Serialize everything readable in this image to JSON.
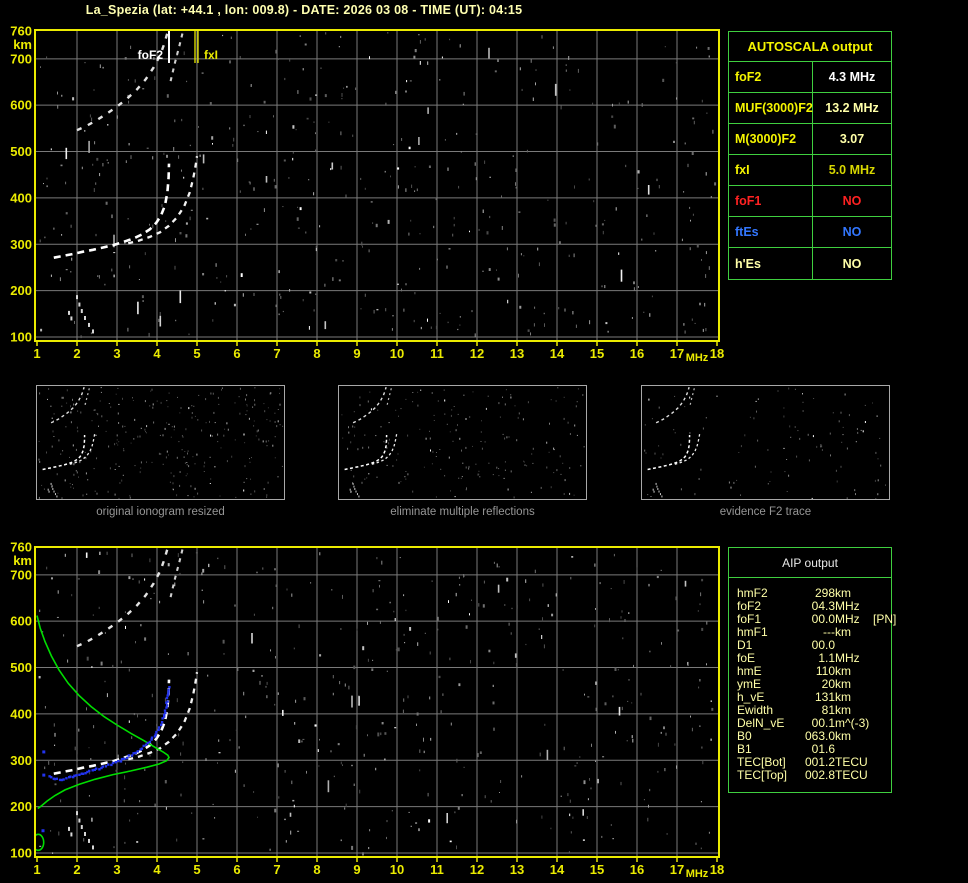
{
  "title": "La_Spezia (lat: +44.1 , lon: 009.8) - DATE: 2026 03 08 - TIME (UT): 04:15",
  "colors": {
    "background": "#000000",
    "axis_yellow": "#ebeb00",
    "title_pale_yellow": "#ffffb0",
    "grid_gray": "#7a7a7a",
    "table_border_green": "#3fcf3f",
    "pale_yellow_text": "#ffffa8",
    "red": "#ff2222",
    "blue": "#3377ff",
    "profile_green": "#00dd00",
    "restored_trace_blue": "#2233ee",
    "trace_white": "#ffffff",
    "caption_gray": "#969696",
    "thumb_border_gray": "#a8a8a8"
  },
  "axes": {
    "x_ticks": [
      1,
      2,
      3,
      4,
      5,
      6,
      7,
      8,
      9,
      10,
      11,
      12,
      13,
      14,
      15,
      16,
      17,
      18
    ],
    "x_unit": "MHz",
    "y_ticks": [
      760,
      700,
      600,
      500,
      400,
      300,
      200,
      100
    ],
    "y_unit": "km"
  },
  "autoscala": {
    "header": "AUTOSCALA output",
    "rows": [
      {
        "label": "foF2",
        "value": "4.3 MHz",
        "label_color": "#f5f500",
        "value_color": "#ffffff"
      },
      {
        "label": "MUF(3000)F2",
        "value": "13.2 MHz",
        "label_color": "#f5f500",
        "value_color": "#ffffa8"
      },
      {
        "label": "M(3000)F2",
        "value": "3.07",
        "label_color": "#f5f500",
        "value_color": "#ffffa8"
      },
      {
        "label": "fxI",
        "value": "5.0 MHz",
        "label_color": "#f5f500",
        "value_color": "#d8d800"
      },
      {
        "label": "foF1",
        "value": "NO",
        "label_color": "#ff2222",
        "value_color": "#ff2222"
      },
      {
        "label": "ftEs",
        "value": "NO",
        "label_color": "#3377ff",
        "value_color": "#3377ff"
      },
      {
        "label": "h'Es",
        "value": "NO",
        "label_color": "#ffffa8",
        "value_color": "#ffffa8"
      }
    ]
  },
  "thumbnails": [
    {
      "caption": "original ionogram resized"
    },
    {
      "caption": "eliminate multiple reflections"
    },
    {
      "caption": "evidence F2 trace"
    }
  ],
  "aip": {
    "header": "AIP output",
    "rows": [
      {
        "label": "hmF2",
        "value": "298",
        "unit": "km",
        "note": ""
      },
      {
        "label": "foF2",
        "value": "04.3",
        "unit": "MHz",
        "note": ""
      },
      {
        "label": "foF1",
        "value": "00.0",
        "unit": "MHz",
        "note": "[PN]"
      },
      {
        "label": "hmF1",
        "value": "---",
        "unit": "km",
        "note": ""
      },
      {
        "label": "D1",
        "value": "00.0",
        "unit": "",
        "note": ""
      },
      {
        "label": "foE",
        "value": "1.1",
        "unit": "MHz",
        "note": ""
      },
      {
        "label": "hmE",
        "value": "110",
        "unit": "km",
        "note": ""
      },
      {
        "label": "ymE",
        "value": "20",
        "unit": "km",
        "note": ""
      },
      {
        "label": "h_vE",
        "value": "131",
        "unit": "km",
        "note": ""
      },
      {
        "label": "Ewidth",
        "value": "81",
        "unit": "km",
        "note": ""
      },
      {
        "label": "DelN_vE",
        "value": "00.1",
        "unit": "m^(-3)",
        "note": ""
      },
      {
        "label": "B0",
        "value": "063.0",
        "unit": "km",
        "note": ""
      },
      {
        "label": "B1",
        "value": "01.6",
        "unit": "",
        "note": ""
      },
      {
        "label": "TEC[Bot]",
        "value": "001.2",
        "unit": "TECU",
        "note": ""
      },
      {
        "label": "TEC[Top]",
        "value": "002.8",
        "unit": "TECU",
        "note": ""
      }
    ]
  },
  "chart_data": [
    {
      "type": "scatter",
      "title": "ionogram echo traces (top plot)",
      "xlabel": "MHz",
      "ylabel": "km",
      "xlim": [
        1,
        18
      ],
      "ylim": [
        100,
        760
      ],
      "grid": true,
      "markers": [
        {
          "name": "foF2",
          "label": "foF2",
          "x_mhz": 4.3,
          "color": "#ffffff"
        },
        {
          "name": "fxI",
          "label": "fxI",
          "x_mhz": 5.0,
          "color": "#ebeb00"
        }
      ],
      "series": [
        {
          "name": "F2 O-mode trace",
          "points": [
            [
              1.42,
              271
            ],
            [
              1.65,
              275
            ],
            [
              1.9,
              279
            ],
            [
              2.15,
              284
            ],
            [
              2.4,
              288
            ],
            [
              2.65,
              293
            ],
            [
              2.9,
              298
            ],
            [
              3.15,
              305
            ],
            [
              3.4,
              312
            ],
            [
              3.62,
              321
            ],
            [
              3.82,
              332
            ],
            [
              3.98,
              346
            ],
            [
              4.1,
              362
            ],
            [
              4.2,
              384
            ],
            [
              4.26,
              412
            ],
            [
              4.29,
              444
            ],
            [
              4.3,
              474
            ]
          ]
        },
        {
          "name": "F2 X-mode trace",
          "points": [
            [
              3.28,
              302
            ],
            [
              3.55,
              308
            ],
            [
              3.82,
              316
            ],
            [
              4.08,
              326
            ],
            [
              4.3,
              340
            ],
            [
              4.5,
              358
            ],
            [
              4.68,
              382
            ],
            [
              4.82,
              412
            ],
            [
              4.91,
              444
            ],
            [
              4.97,
              472
            ],
            [
              5.0,
              490
            ]
          ]
        },
        {
          "name": "second reflection O",
          "points": [
            [
              2.0,
              546
            ],
            [
              2.25,
              556
            ],
            [
              2.5,
              568
            ],
            [
              2.75,
              582
            ],
            [
              3.0,
              597
            ],
            [
              3.25,
              614
            ],
            [
              3.5,
              634
            ],
            [
              3.72,
              656
            ],
            [
              3.92,
              682
            ],
            [
              4.08,
              708
            ],
            [
              4.18,
              732
            ],
            [
              4.26,
              756
            ]
          ]
        },
        {
          "name": "second reflection X",
          "points": [
            [
              4.34,
              652
            ],
            [
              4.45,
              692
            ],
            [
              4.56,
              728
            ],
            [
              4.64,
              756
            ]
          ]
        },
        {
          "name": "E-region echoes",
          "points": [
            [
              1.8,
              152
            ],
            [
              1.86,
              140
            ],
            [
              2.0,
              186
            ],
            [
              2.06,
              170
            ],
            [
              2.12,
              156
            ],
            [
              2.2,
              141
            ],
            [
              2.3,
              126
            ],
            [
              2.4,
              112
            ]
          ]
        }
      ]
    },
    {
      "type": "scatter",
      "title": "ionogram with AIP inversion profile (bottom plot)",
      "xlabel": "MHz",
      "ylabel": "km",
      "xlim": [
        1,
        18
      ],
      "ylim": [
        100,
        760
      ],
      "grid": true,
      "series": [
        {
          "name": "F2 O-mode trace",
          "points": [
            [
              1.42,
              271
            ],
            [
              1.65,
              275
            ],
            [
              1.9,
              279
            ],
            [
              2.15,
              284
            ],
            [
              2.4,
              288
            ],
            [
              2.65,
              293
            ],
            [
              2.9,
              298
            ],
            [
              3.15,
              305
            ],
            [
              3.4,
              312
            ],
            [
              3.62,
              321
            ],
            [
              3.82,
              332
            ],
            [
              3.98,
              346
            ],
            [
              4.1,
              362
            ],
            [
              4.2,
              384
            ],
            [
              4.26,
              412
            ],
            [
              4.29,
              444
            ],
            [
              4.3,
              474
            ]
          ]
        },
        {
          "name": "F2 X-mode trace",
          "points": [
            [
              3.28,
              302
            ],
            [
              3.55,
              308
            ],
            [
              3.82,
              316
            ],
            [
              4.08,
              326
            ],
            [
              4.3,
              340
            ],
            [
              4.5,
              358
            ],
            [
              4.68,
              382
            ],
            [
              4.82,
              412
            ],
            [
              4.91,
              444
            ],
            [
              4.97,
              472
            ],
            [
              5.0,
              490
            ]
          ]
        },
        {
          "name": "second reflection O",
          "points": [
            [
              2.0,
              546
            ],
            [
              2.25,
              556
            ],
            [
              2.5,
              568
            ],
            [
              2.75,
              582
            ],
            [
              3.0,
              597
            ],
            [
              3.25,
              614
            ],
            [
              3.5,
              634
            ],
            [
              3.72,
              656
            ],
            [
              3.92,
              682
            ],
            [
              4.08,
              708
            ],
            [
              4.18,
              732
            ],
            [
              4.26,
              756
            ]
          ]
        },
        {
          "name": "second reflection X",
          "points": [
            [
              4.34,
              652
            ],
            [
              4.45,
              692
            ],
            [
              4.56,
              728
            ],
            [
              4.64,
              756
            ]
          ]
        },
        {
          "name": "E-region echoes",
          "points": [
            [
              1.8,
              152
            ],
            [
              1.86,
              140
            ],
            [
              2.0,
              186
            ],
            [
              2.06,
              170
            ],
            [
              2.12,
              156
            ],
            [
              2.2,
              141
            ],
            [
              2.3,
              126
            ],
            [
              2.4,
              112
            ]
          ]
        },
        {
          "name": "electron density profile",
          "points": [
            [
              1.0,
              612
            ],
            [
              1.08,
              585
            ],
            [
              1.2,
              556
            ],
            [
              1.36,
              525
            ],
            [
              1.55,
              495
            ],
            [
              1.78,
              466
            ],
            [
              2.05,
              440
            ],
            [
              2.35,
              416
            ],
            [
              2.68,
              394
            ],
            [
              3.0,
              376
            ],
            [
              3.35,
              358
            ],
            [
              3.68,
              342
            ],
            [
              3.95,
              328
            ],
            [
              4.15,
              318
            ],
            [
              4.27,
              311
            ],
            [
              4.3,
              306
            ],
            [
              4.24,
              299
            ],
            [
              4.05,
              292
            ],
            [
              3.75,
              285
            ],
            [
              3.35,
              277
            ],
            [
              2.9,
              269
            ],
            [
              2.45,
              259
            ],
            [
              2.05,
              248
            ],
            [
              1.7,
              236
            ],
            [
              1.45,
              224
            ],
            [
              1.25,
              212
            ],
            [
              1.1,
              201
            ],
            [
              1.02,
              196
            ]
          ]
        },
        {
          "name": "E valley loop",
          "points": [
            [
              1.03,
              123
            ]
          ]
        },
        {
          "name": "restored trace",
          "points": [
            [
              1.32,
              265
            ],
            [
              1.4,
              261
            ],
            [
              1.5,
              259
            ],
            [
              1.62,
              259
            ],
            [
              1.75,
              261
            ],
            [
              1.9,
              264
            ],
            [
              2.05,
              268
            ],
            [
              2.2,
              272
            ],
            [
              2.38,
              277
            ],
            [
              2.55,
              282
            ],
            [
              2.72,
              287
            ],
            [
              2.9,
              293
            ],
            [
              3.08,
              299
            ],
            [
              3.25,
              306
            ],
            [
              3.42,
              314
            ],
            [
              3.58,
              323
            ],
            [
              3.72,
              333
            ],
            [
              3.85,
              344
            ],
            [
              3.97,
              357
            ],
            [
              4.07,
              372
            ],
            [
              4.15,
              389
            ],
            [
              4.21,
              408
            ],
            [
              4.26,
              428
            ],
            [
              4.29,
              448
            ],
            [
              4.31,
              462
            ]
          ]
        },
        {
          "name": "isolated restored points",
          "points": [
            [
              1.17,
              318
            ],
            [
              1.17,
              268
            ],
            [
              1.15,
              148
            ]
          ]
        }
      ]
    }
  ]
}
